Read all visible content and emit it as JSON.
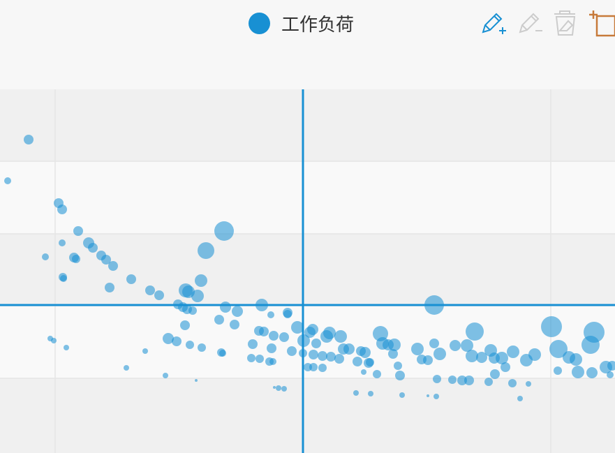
{
  "legend": {
    "label": "工作负荷",
    "color": "#1890d3"
  },
  "toolbar": {
    "icons": [
      "pencil-add-icon",
      "pencil-remove-icon",
      "eraser-icon",
      "rect-select-icon"
    ],
    "colors": {
      "active": "#1890d3",
      "disabled": "#cccccc",
      "select": "#c77a3a"
    }
  },
  "chart_data": {
    "type": "scatter",
    "title": "",
    "series": [
      {
        "name": "工作负荷",
        "color": "#1890d3"
      }
    ],
    "grid": true,
    "crosshair": true,
    "points": [
      [
        41,
        200,
        7
      ],
      [
        11,
        259,
        5
      ],
      [
        84,
        291,
        7
      ],
      [
        89,
        300,
        7
      ],
      [
        112,
        331,
        7
      ],
      [
        89,
        348,
        5
      ],
      [
        127,
        348,
        8
      ],
      [
        133,
        355,
        7
      ],
      [
        145,
        366,
        7
      ],
      [
        152,
        372,
        7
      ],
      [
        162,
        381,
        7
      ],
      [
        65,
        368,
        5
      ],
      [
        106,
        369,
        7
      ],
      [
        109,
        371,
        6
      ],
      [
        90,
        397,
        6
      ],
      [
        91,
        399,
        5
      ],
      [
        157,
        412,
        7
      ],
      [
        188,
        400,
        7
      ],
      [
        215,
        416,
        7
      ],
      [
        228,
        423,
        7
      ],
      [
        266,
        416,
        10
      ],
      [
        270,
        418,
        9
      ],
      [
        288,
        402,
        9
      ],
      [
        295,
        359,
        12
      ],
      [
        321,
        331,
        14
      ],
      [
        283,
        424,
        9
      ],
      [
        255,
        436,
        7
      ],
      [
        262,
        440,
        7
      ],
      [
        268,
        443,
        7
      ],
      [
        276,
        445,
        6
      ],
      [
        323,
        440,
        8
      ],
      [
        340,
        446,
        8
      ],
      [
        375,
        437,
        9
      ],
      [
        412,
        448,
        7
      ],
      [
        314,
        458,
        7
      ],
      [
        336,
        465,
        7
      ],
      [
        265,
        466,
        7
      ],
      [
        241,
        485,
        8
      ],
      [
        253,
        489,
        7
      ],
      [
        272,
        494,
        6
      ],
      [
        289,
        498,
        6
      ],
      [
        317,
        505,
        6
      ],
      [
        362,
        493,
        7
      ],
      [
        371,
        474,
        7
      ],
      [
        378,
        475,
        7
      ],
      [
        389,
        499,
        7
      ],
      [
        392,
        481,
        7
      ],
      [
        407,
        483,
        7
      ],
      [
        418,
        503,
        7
      ],
      [
        426,
        469,
        9
      ],
      [
        435,
        488,
        9
      ],
      [
        444,
        476,
        8
      ],
      [
        448,
        472,
        8
      ],
      [
        453,
        492,
        7
      ],
      [
        468,
        482,
        9
      ],
      [
        472,
        477,
        9
      ],
      [
        488,
        482,
        9
      ],
      [
        492,
        500,
        8
      ],
      [
        500,
        500,
        8
      ],
      [
        517,
        503,
        7
      ],
      [
        523,
        505,
        8
      ],
      [
        545,
        478,
        11
      ],
      [
        548,
        492,
        9
      ],
      [
        556,
        494,
        8
      ],
      [
        565,
        494,
        9
      ],
      [
        563,
        507,
        7
      ],
      [
        598,
        500,
        9
      ],
      [
        622,
        492,
        7
      ],
      [
        630,
        507,
        9
      ],
      [
        622,
        437,
        14
      ],
      [
        652,
        495,
        8
      ],
      [
        669,
        495,
        9
      ],
      [
        680,
        475,
        13
      ],
      [
        676,
        510,
        9
      ],
      [
        690,
        512,
        8
      ],
      [
        703,
        502,
        9
      ],
      [
        708,
        513,
        8
      ],
      [
        719,
        513,
        9
      ],
      [
        735,
        504,
        9
      ],
      [
        754,
        516,
        9
      ],
      [
        766,
        508,
        9
      ],
      [
        790,
        468,
        15
      ],
      [
        800,
        500,
        13
      ],
      [
        815,
        512,
        9
      ],
      [
        825,
        515,
        9
      ],
      [
        846,
        494,
        13
      ],
      [
        851,
        476,
        15
      ],
      [
        828,
        533,
        9
      ],
      [
        848,
        534,
        8
      ],
      [
        868,
        526,
        9
      ],
      [
        877,
        524,
        7
      ],
      [
        449,
        508,
        7
      ],
      [
        462,
        510,
        7
      ],
      [
        474,
        511,
        7
      ],
      [
        486,
        514,
        7
      ],
      [
        512,
        518,
        7
      ],
      [
        528,
        520,
        7
      ],
      [
        540,
        536,
        6
      ],
      [
        573,
        538,
        7
      ],
      [
        604,
        515,
        7
      ],
      [
        613,
        516,
        7
      ],
      [
        648,
        544,
        6
      ],
      [
        662,
        545,
        7
      ],
      [
        672,
        545,
        7
      ],
      [
        700,
        547,
        6
      ],
      [
        709,
        536,
        7
      ],
      [
        724,
        526,
        7
      ],
      [
        734,
        549,
        6
      ],
      [
        757,
        550,
        4
      ],
      [
        799,
        531,
        6
      ],
      [
        874,
        537,
        5
      ],
      [
        441,
        526,
        6
      ],
      [
        449,
        526,
        6
      ],
      [
        462,
        527,
        6
      ],
      [
        530,
        519,
        6
      ],
      [
        521,
        533,
        4
      ],
      [
        570,
        524,
        6
      ],
      [
        626,
        543,
        6
      ],
      [
        72,
        485,
        4
      ],
      [
        77,
        488,
        4
      ],
      [
        95,
        498,
        4
      ],
      [
        208,
        503,
        4
      ],
      [
        181,
        527,
        4
      ],
      [
        237,
        538,
        4
      ],
      [
        281,
        545,
        2
      ],
      [
        360,
        513,
        6
      ],
      [
        372,
        514,
        6
      ],
      [
        386,
        518,
        6
      ],
      [
        391,
        518,
        5
      ],
      [
        393,
        555,
        2
      ],
      [
        399,
        556,
        4
      ],
      [
        407,
        557,
        4
      ],
      [
        510,
        563,
        4
      ],
      [
        531,
        564,
        4
      ],
      [
        576,
        566,
        4
      ],
      [
        613,
        567,
        2
      ],
      [
        625,
        568,
        4
      ],
      [
        745,
        571,
        4
      ],
      [
        319,
        506,
        5
      ],
      [
        388,
        451,
        5
      ],
      [
        412,
        450,
        6
      ],
      [
        434,
        506,
        6
      ]
    ]
  }
}
